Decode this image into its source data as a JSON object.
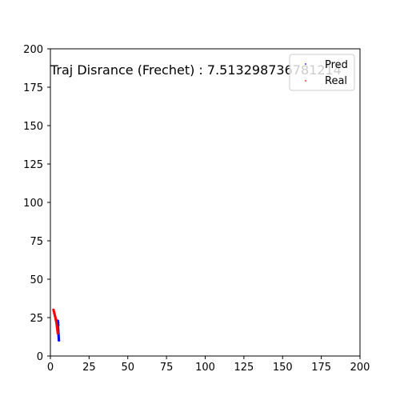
{
  "chart_data": {
    "type": "scatter",
    "annotation": "Traj Disrance (Frechet) : 7.513298736781214",
    "xlim": [
      0,
      200
    ],
    "ylim": [
      0,
      200
    ],
    "xticks": [
      0,
      25,
      50,
      75,
      100,
      125,
      150,
      175,
      200
    ],
    "yticks": [
      0,
      25,
      50,
      75,
      100,
      125,
      150,
      175,
      200
    ],
    "grid": false,
    "legend_position": "top-right",
    "series": [
      {
        "name": "Pred",
        "color": "#0000ff",
        "points": [
          [
            4.5,
            23.0
          ],
          [
            4.6,
            22.2
          ],
          [
            4.7,
            21.4
          ],
          [
            4.8,
            20.6
          ],
          [
            4.9,
            19.8
          ],
          [
            4.9,
            19.0
          ],
          [
            5.0,
            18.2
          ],
          [
            5.0,
            17.4
          ],
          [
            5.1,
            16.6
          ],
          [
            5.1,
            15.8
          ],
          [
            5.2,
            15.0
          ],
          [
            5.2,
            14.2
          ],
          [
            5.3,
            13.4
          ],
          [
            5.3,
            12.6
          ],
          [
            5.4,
            11.8
          ],
          [
            5.4,
            11.0
          ],
          [
            5.5,
            10.2
          ],
          [
            4.8,
            22.8
          ],
          [
            5.0,
            21.6
          ],
          [
            5.1,
            20.2
          ]
        ]
      },
      {
        "name": "Real",
        "color": "#ff0000",
        "points": [
          [
            2.0,
            30.0
          ],
          [
            2.2,
            29.2
          ],
          [
            2.4,
            28.4
          ],
          [
            2.6,
            27.6
          ],
          [
            2.8,
            26.8
          ],
          [
            3.0,
            26.0
          ],
          [
            3.2,
            25.2
          ],
          [
            3.4,
            24.4
          ],
          [
            3.5,
            23.6
          ],
          [
            3.7,
            22.8
          ],
          [
            3.9,
            22.0
          ],
          [
            4.0,
            21.2
          ],
          [
            4.1,
            20.4
          ],
          [
            4.2,
            19.6
          ],
          [
            4.3,
            18.8
          ],
          [
            4.4,
            18.0
          ],
          [
            4.5,
            17.2
          ],
          [
            4.6,
            16.4
          ],
          [
            4.7,
            15.6
          ],
          [
            4.8,
            14.8
          ]
        ]
      }
    ]
  }
}
